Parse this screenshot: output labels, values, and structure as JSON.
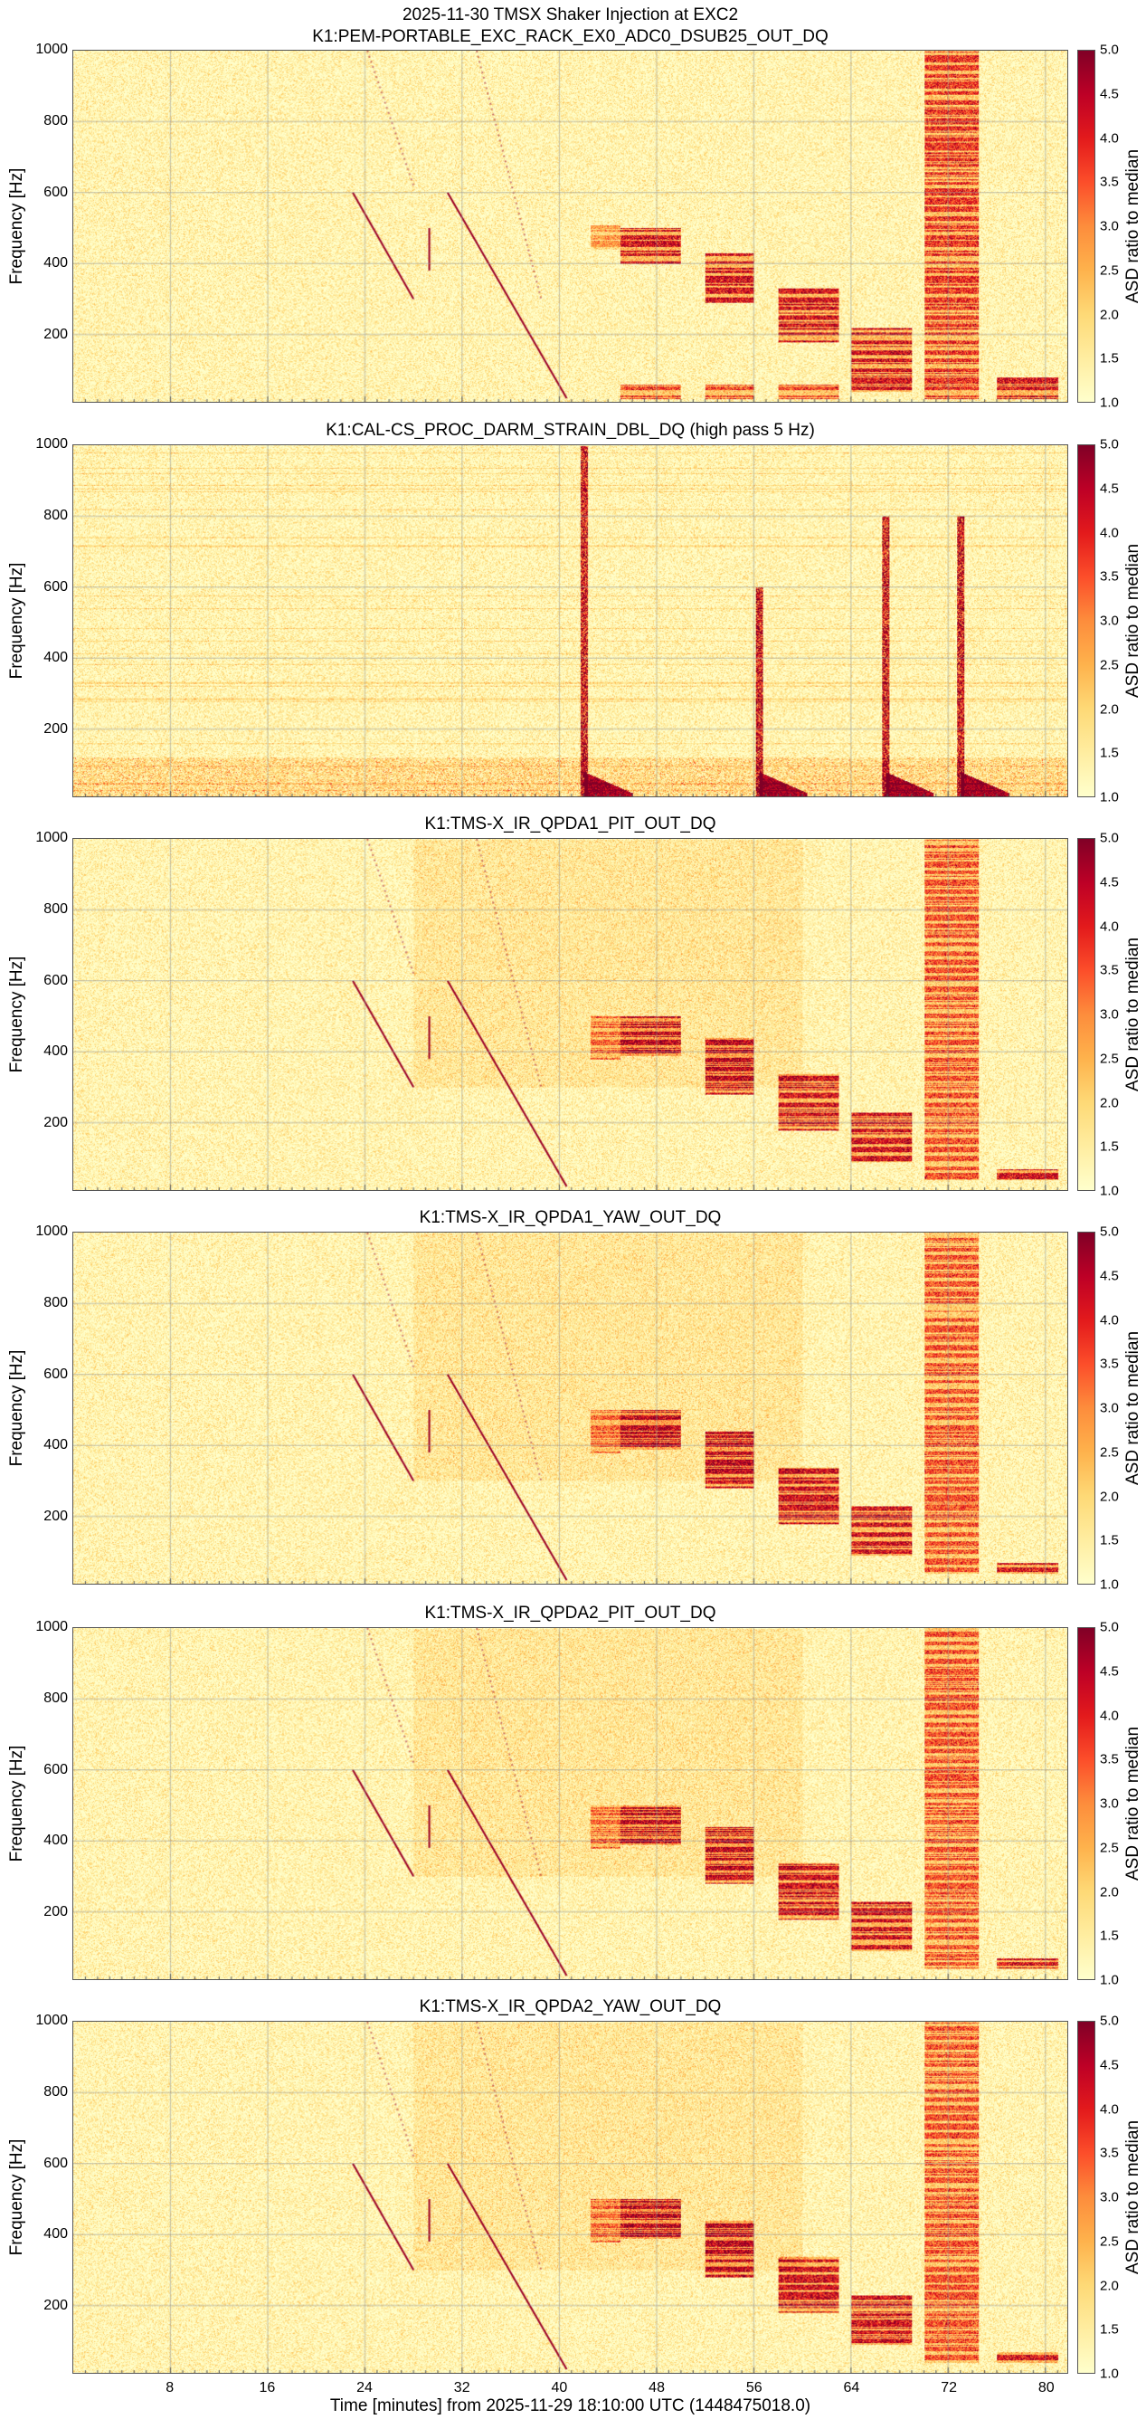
{
  "suptitle": "2025-11-30 TMSX Shaker Injection at EXC2",
  "x_axis": {
    "label": "Time [minutes] from 2025-11-29 18:10:00 UTC (1448475018.0)",
    "ticks": [
      "8",
      "16",
      "24",
      "32",
      "40",
      "48",
      "56",
      "64",
      "72",
      "80"
    ]
  },
  "chart_data": [
    {
      "type": "heatmap",
      "title": "K1:PEM-PORTABLE_EXC_RACK_EX0_ADC0_DSUB25_OUT_DQ",
      "ylabel": "Frequency [Hz]",
      "ylim": [
        10,
        1000
      ],
      "xlim": [
        0,
        81.8
      ],
      "yticks": [
        "1000",
        "800",
        "600",
        "400",
        "200"
      ],
      "colorbar": {
        "label": "ASD ratio to median",
        "range": [
          1.0,
          5.0
        ],
        "ticks": [
          "5.0",
          "4.5",
          "4.0",
          "3.5",
          "3.0",
          "2.5",
          "2.0",
          "1.5",
          "1.0"
        ]
      }
    },
    {
      "type": "heatmap",
      "title": "K1:CAL-CS_PROC_DARM_STRAIN_DBL_DQ (high pass 5 Hz)",
      "ylabel": "Frequency [Hz]",
      "ylim": [
        10,
        1000
      ],
      "xlim": [
        0,
        81.8
      ],
      "yticks": [
        "1000",
        "800",
        "600",
        "400",
        "200"
      ],
      "colorbar": {
        "label": "ASD ratio to median",
        "range": [
          1.0,
          5.0
        ],
        "ticks": [
          "5.0",
          "4.5",
          "4.0",
          "3.5",
          "3.0",
          "2.5",
          "2.0",
          "1.5",
          "1.0"
        ]
      }
    },
    {
      "type": "heatmap",
      "title": "K1:TMS-X_IR_QPDA1_PIT_OUT_DQ",
      "ylabel": "Frequency [Hz]",
      "ylim": [
        10,
        1000
      ],
      "xlim": [
        0,
        81.8
      ],
      "yticks": [
        "1000",
        "800",
        "600",
        "400",
        "200"
      ],
      "colorbar": {
        "label": "ASD ratio to median",
        "range": [
          1.0,
          5.0
        ],
        "ticks": [
          "5.0",
          "4.5",
          "4.0",
          "3.5",
          "3.0",
          "2.5",
          "2.0",
          "1.5",
          "1.0"
        ]
      }
    },
    {
      "type": "heatmap",
      "title": "K1:TMS-X_IR_QPDA1_YAW_OUT_DQ",
      "ylabel": "Frequency [Hz]",
      "ylim": [
        10,
        1000
      ],
      "xlim": [
        0,
        81.8
      ],
      "yticks": [
        "1000",
        "800",
        "600",
        "400",
        "200"
      ],
      "colorbar": {
        "label": "ASD ratio to median",
        "range": [
          1.0,
          5.0
        ],
        "ticks": [
          "5.0",
          "4.5",
          "4.0",
          "3.5",
          "3.0",
          "2.5",
          "2.0",
          "1.5",
          "1.0"
        ]
      }
    },
    {
      "type": "heatmap",
      "title": "K1:TMS-X_IR_QPDA2_PIT_OUT_DQ",
      "ylabel": "Frequency [Hz]",
      "ylim": [
        10,
        1000
      ],
      "xlim": [
        0,
        81.8
      ],
      "yticks": [
        "1000",
        "800",
        "600",
        "400",
        "200"
      ],
      "colorbar": {
        "label": "ASD ratio to median",
        "range": [
          1.0,
          5.0
        ],
        "ticks": [
          "5.0",
          "4.5",
          "4.0",
          "3.5",
          "3.0",
          "2.5",
          "2.0",
          "1.5",
          "1.0"
        ]
      }
    },
    {
      "type": "heatmap",
      "title": "K1:TMS-X_IR_QPDA2_YAW_OUT_DQ",
      "ylabel": "Frequency [Hz]",
      "ylim": [
        10,
        1000
      ],
      "xlim": [
        0,
        81.8
      ],
      "yticks": [
        "1000",
        "800",
        "600",
        "400",
        "200"
      ],
      "colorbar": {
        "label": "ASD ratio to median",
        "range": [
          1.0,
          5.0
        ],
        "ticks": [
          "5.0",
          "4.5",
          "4.0",
          "3.5",
          "3.0",
          "2.5",
          "2.0",
          "1.5",
          "1.0"
        ]
      }
    }
  ]
}
